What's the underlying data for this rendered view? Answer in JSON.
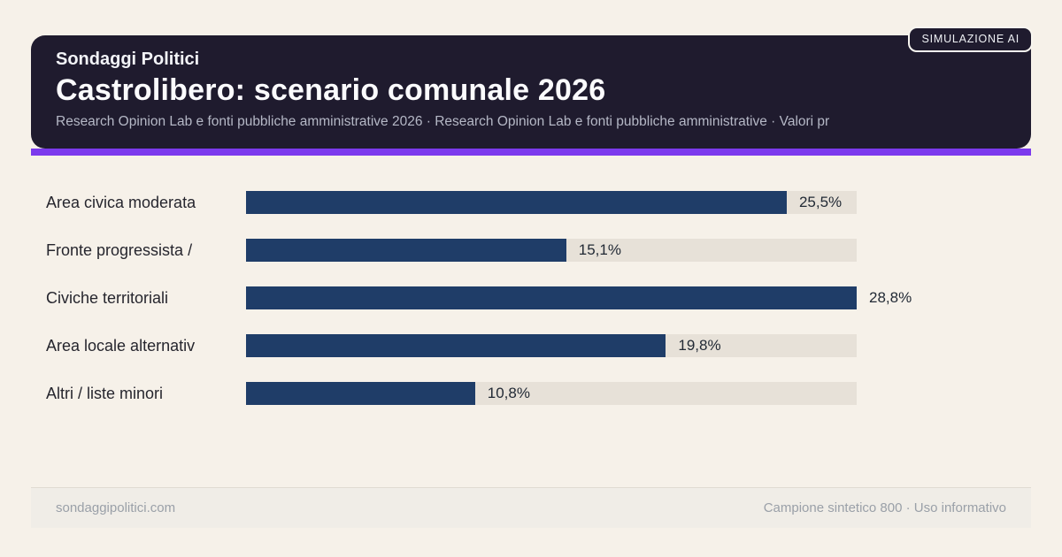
{
  "page": {
    "background": "#f6f1e9",
    "badge_label": "SIMULAZIONE AI"
  },
  "header": {
    "kicker": "Sondaggi Politici",
    "title": "Castrolibero: scenario comunale 2026",
    "subtitle": "Research Opinion Lab e fonti pubbliche amministrative 2026 · Research Opinion Lab e fonti pubbliche amministrative · Valori pr",
    "background": "#1f1b2e",
    "accent_color": "#7c3aed"
  },
  "chart_data": {
    "type": "bar",
    "orientation": "horizontal",
    "title": "Castrolibero: scenario comunale 2026",
    "categories": [
      "Area civica moderata",
      "Fronte progressista /",
      "Civiche territoriali",
      "Area locale alternativ",
      "Altri / liste minori"
    ],
    "values": [
      25.5,
      15.1,
      28.8,
      19.8,
      10.8
    ],
    "value_labels": [
      "25,5%",
      "15,1%",
      "28,8%",
      "19,8%",
      "10,8%"
    ],
    "xlim": [
      0,
      28.8
    ],
    "bar_color": "#1f3d68",
    "track_color": "#e7e1d8",
    "grid": false,
    "legend": false,
    "value_suffix": "%",
    "decimal_separator": ","
  },
  "footer": {
    "left": "sondaggipolitici.com",
    "right": "Campione sintetico 800 · Uso informativo"
  }
}
